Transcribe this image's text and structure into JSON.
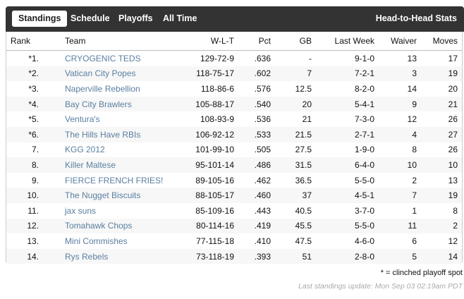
{
  "tabs": {
    "standings": "Standings",
    "schedule": "Schedule",
    "playoffs": "Playoffs",
    "all_time": "All Time",
    "head_to_head": "Head-to-Head Stats"
  },
  "columns": {
    "rank": "Rank",
    "team": "Team",
    "wlt": "W-L-T",
    "pct": "Pct",
    "gb": "GB",
    "last_week": "Last Week",
    "waiver": "Waiver",
    "moves": "Moves"
  },
  "rows": [
    {
      "rank": "*1.",
      "team": "CRYOGENIC TEDS",
      "wlt": "129-72-9",
      "pct": ".636",
      "gb": "-",
      "last_week": "9-1-0",
      "waiver": "13",
      "moves": "17"
    },
    {
      "rank": "*2.",
      "team": "Vatican City Popes",
      "wlt": "118-75-17",
      "pct": ".602",
      "gb": "7",
      "last_week": "7-2-1",
      "waiver": "3",
      "moves": "19"
    },
    {
      "rank": "*3.",
      "team": "Naperville Rebellion",
      "wlt": "118-86-6",
      "pct": ".576",
      "gb": "12.5",
      "last_week": "8-2-0",
      "waiver": "14",
      "moves": "20"
    },
    {
      "rank": "*4.",
      "team": "Bay City Brawlers",
      "wlt": "105-88-17",
      "pct": ".540",
      "gb": "20",
      "last_week": "5-4-1",
      "waiver": "9",
      "moves": "21"
    },
    {
      "rank": "*5.",
      "team": "Ventura's",
      "wlt": "108-93-9",
      "pct": ".536",
      "gb": "21",
      "last_week": "7-3-0",
      "waiver": "12",
      "moves": "26"
    },
    {
      "rank": "*6.",
      "team": "The Hills Have RBIs",
      "wlt": "106-92-12",
      "pct": ".533",
      "gb": "21.5",
      "last_week": "2-7-1",
      "waiver": "4",
      "moves": "27"
    },
    {
      "rank": "7.",
      "team": "KGG 2012",
      "wlt": "101-99-10",
      "pct": ".505",
      "gb": "27.5",
      "last_week": "1-9-0",
      "waiver": "8",
      "moves": "26"
    },
    {
      "rank": "8.",
      "team": "Killer Maltese",
      "wlt": "95-101-14",
      "pct": ".486",
      "gb": "31.5",
      "last_week": "6-4-0",
      "waiver": "10",
      "moves": "10"
    },
    {
      "rank": "9.",
      "team": "FIERCE FRENCH FRIES!",
      "wlt": "89-105-16",
      "pct": ".462",
      "gb": "36.5",
      "last_week": "5-5-0",
      "waiver": "2",
      "moves": "13"
    },
    {
      "rank": "10.",
      "team": "The Nugget Biscuits",
      "wlt": "88-105-17",
      "pct": ".460",
      "gb": "37",
      "last_week": "4-5-1",
      "waiver": "7",
      "moves": "19"
    },
    {
      "rank": "11.",
      "team": "jax suns",
      "wlt": "85-109-16",
      "pct": ".443",
      "gb": "40.5",
      "last_week": "3-7-0",
      "waiver": "1",
      "moves": "8"
    },
    {
      "rank": "12.",
      "team": "Tomahawk Chops",
      "wlt": "80-114-16",
      "pct": ".419",
      "gb": "45.5",
      "last_week": "5-5-0",
      "waiver": "11",
      "moves": "2"
    },
    {
      "rank": "13.",
      "team": "Mini Commishes",
      "wlt": "77-115-18",
      "pct": ".410",
      "gb": "47.5",
      "last_week": "4-6-0",
      "waiver": "6",
      "moves": "12"
    },
    {
      "rank": "14.",
      "team": "Rys Rebels",
      "wlt": "73-118-19",
      "pct": ".393",
      "gb": "51",
      "last_week": "2-8-0",
      "waiver": "5",
      "moves": "14"
    }
  ],
  "footnote": "* = clinched playoff spot",
  "last_update": "Last standings update: Mon Sep 03 02:19am PDT"
}
